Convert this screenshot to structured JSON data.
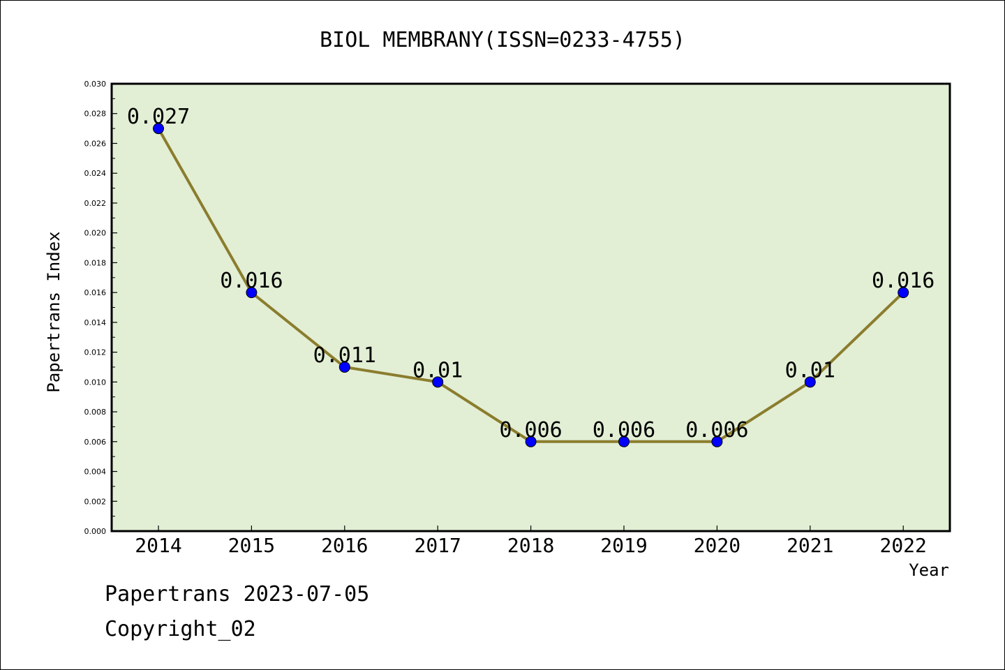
{
  "chart_data": {
    "type": "line",
    "title": "BIOL MEMBRANY(ISSN=0233-4755)",
    "xlabel": "Year",
    "ylabel": "Papertrans Index",
    "categories": [
      "2014",
      "2015",
      "2016",
      "2017",
      "2018",
      "2019",
      "2020",
      "2021",
      "2022"
    ],
    "values": [
      0.027,
      0.016,
      0.011,
      0.01,
      0.006,
      0.006,
      0.006,
      0.01,
      0.016
    ],
    "data_labels": [
      "0.027",
      "0.016",
      "0.011",
      "0.01",
      "0.006",
      "0.006",
      "0.006",
      "0.01",
      "0.016"
    ],
    "ylim": [
      0,
      0.03
    ],
    "yticks": [
      "0.000",
      "0.002",
      "0.004",
      "0.006",
      "0.008",
      "0.010",
      "0.012",
      "0.014",
      "0.016",
      "0.018",
      "0.020",
      "0.022",
      "0.024",
      "0.026",
      "0.028",
      "0.030"
    ],
    "grid": false,
    "colors": {
      "plot_background": "#E2EFD5",
      "line": "#8B7D2E",
      "marker": "#0000FF"
    }
  },
  "footer": {
    "line1": "Papertrans 2023-07-05",
    "line2": "Copyright_02"
  }
}
